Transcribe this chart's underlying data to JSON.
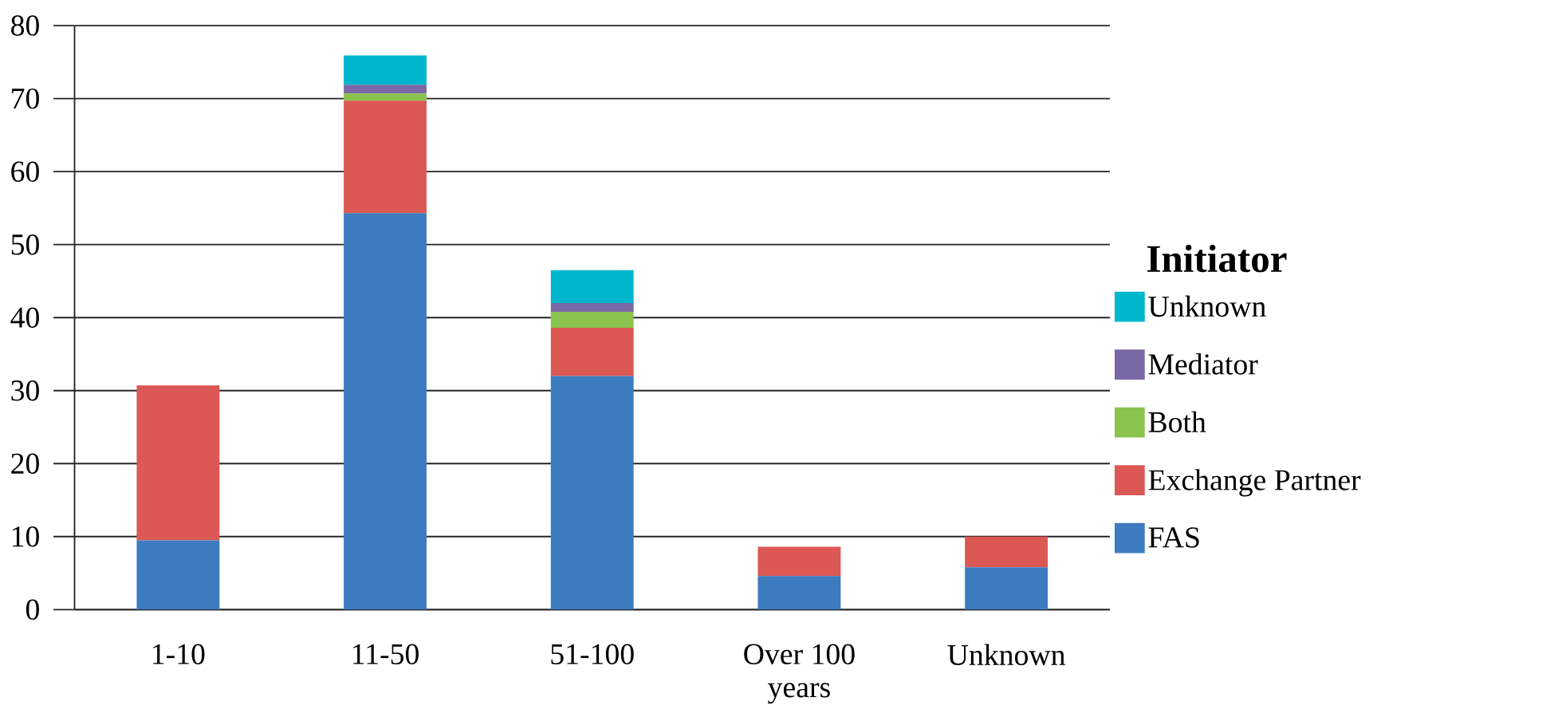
{
  "chart_data": {
    "type": "bar",
    "stacked": true,
    "legend_title": "Initiator",
    "legend": "right",
    "grid": "y",
    "categories": [
      "1-10",
      "11-50",
      "51-100",
      "Over 100 years",
      "Unknown"
    ],
    "series": [
      {
        "name": "FAS",
        "color": "#3d7bbf",
        "values": [
          9.5,
          54.3,
          32.0,
          4.6,
          5.8
        ]
      },
      {
        "name": "Exchange Partner",
        "color": "#db5855",
        "values": [
          21.2,
          15.4,
          6.6,
          4.0,
          4.2
        ]
      },
      {
        "name": "Both",
        "color": "#8bc34f",
        "values": [
          0,
          1.0,
          2.2,
          0,
          0
        ]
      },
      {
        "name": "Mediator",
        "color": "#7a68a6",
        "values": [
          0,
          1.2,
          1.2,
          0,
          0
        ]
      },
      {
        "name": "Unknown",
        "color": "#00b6cd",
        "values": [
          0,
          4.0,
          4.5,
          0,
          0
        ]
      }
    ],
    "ylim": [
      0,
      80
    ],
    "yticks": [
      0,
      10,
      20,
      30,
      40,
      50,
      60,
      70,
      80
    ]
  }
}
